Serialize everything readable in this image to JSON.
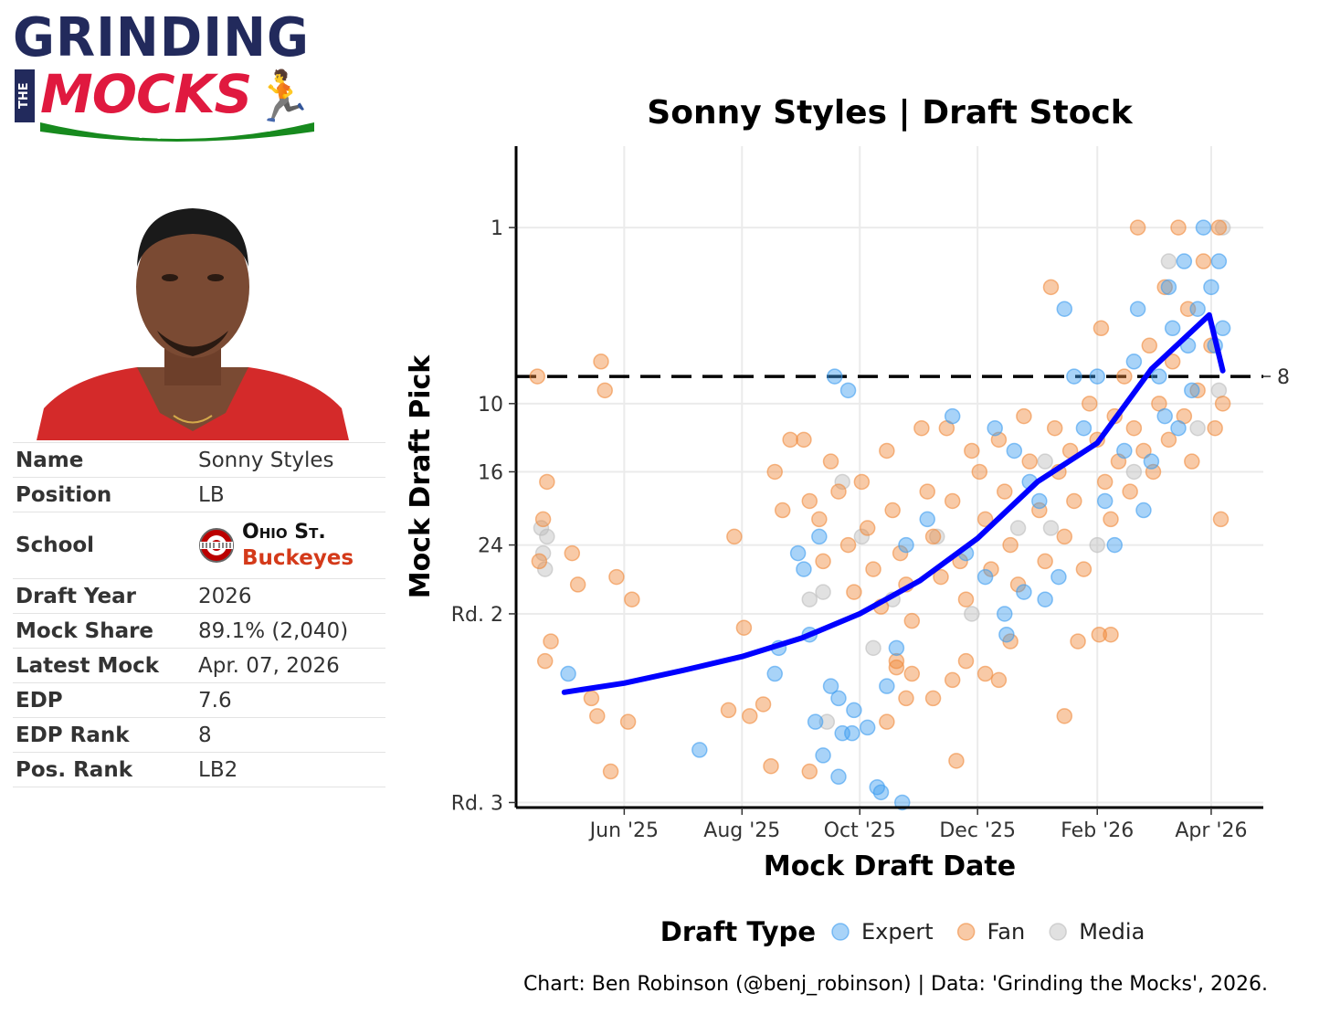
{
  "logo": {
    "line1": "GRINDING",
    "the": "THE",
    "line2": "MOCKS",
    "colors": {
      "navy": "#222a5c",
      "red": "#e0193f",
      "green": "#178a1e"
    }
  },
  "player_photo": {
    "icon": "player-headshot"
  },
  "info": {
    "rows": [
      {
        "label": "Name",
        "value": "Sonny Styles"
      },
      {
        "label": "Position",
        "value": "LB"
      },
      {
        "label": "School",
        "school_name": "Ohio St.",
        "school_nickname": "Buckeyes",
        "school_icon": "ohio-state-logo"
      },
      {
        "label": "Draft Year",
        "value": "2026"
      },
      {
        "label": "Mock Share",
        "value": "89.1% (2,040)"
      },
      {
        "label": "Latest Mock",
        "value": "Apr. 07, 2026"
      },
      {
        "label": "EDP",
        "value": "7.6"
      },
      {
        "label": "EDP Rank",
        "value": "8"
      },
      {
        "label": "Pos. Rank",
        "value": "LB2"
      }
    ]
  },
  "chart_data": {
    "type": "scatter",
    "title": "Sonny Styles | Draft Stock",
    "xlabel": "Mock Draft Date",
    "ylabel": "Mock Draft Pick",
    "xlim": [
      "2025-04-06",
      "2026-04-28"
    ],
    "x_ticks": [
      {
        "date": "2025-06-01",
        "label": "Jun '25"
      },
      {
        "date": "2025-08-01",
        "label": "Aug '25"
      },
      {
        "date": "2025-10-01",
        "label": "Oct '25"
      },
      {
        "date": "2025-12-01",
        "label": "Dec '25"
      },
      {
        "date": "2026-02-01",
        "label": "Feb '26"
      },
      {
        "date": "2026-04-01",
        "label": "Apr '26"
      }
    ],
    "y_scale": "sqrt",
    "y_reversed": true,
    "ylim": [
      0,
      66
    ],
    "y_ticks": [
      {
        "value": 1,
        "label": "1"
      },
      {
        "value": 10,
        "label": "10"
      },
      {
        "value": 16,
        "label": "16"
      },
      {
        "value": 24,
        "label": "24"
      },
      {
        "value": 33,
        "label": "Rd. 2"
      },
      {
        "value": 65,
        "label": "Rd. 3"
      }
    ],
    "reference_line": {
      "value": 8,
      "label": "8",
      "style": "dashed"
    },
    "grid": true,
    "legend": {
      "title": "Draft Type",
      "position": "bottom",
      "entries": [
        {
          "name": "Expert",
          "color": "#3d9df0"
        },
        {
          "name": "Fan",
          "color": "#f08a3c"
        },
        {
          "name": "Media",
          "color": "#bdbdbd"
        }
      ]
    },
    "trend_color": "#0000ff",
    "trend": [
      [
        "2025-05-01",
        45
      ],
      [
        "2025-06-01",
        43.5
      ],
      [
        "2025-07-01",
        41.5
      ],
      [
        "2025-08-01",
        39.3
      ],
      [
        "2025-09-01",
        36.5
      ],
      [
        "2025-10-01",
        33
      ],
      [
        "2025-11-01",
        28.5
      ],
      [
        "2025-12-01",
        23.2
      ],
      [
        "2026-01-01",
        17
      ],
      [
        "2026-02-01",
        13.3
      ],
      [
        "2026-03-01",
        7.5
      ],
      [
        "2026-03-31",
        4.3
      ],
      [
        "2026-04-07",
        7.6
      ]
    ],
    "series": [
      {
        "name": "Expert",
        "points": [
          [
            "2025-05-03",
            42
          ],
          [
            "2025-07-10",
            55
          ],
          [
            "2025-08-18",
            42
          ],
          [
            "2025-08-20",
            38
          ],
          [
            "2025-09-05",
            36
          ],
          [
            "2025-09-18",
            8
          ],
          [
            "2025-09-25",
            9
          ],
          [
            "2025-09-02",
            27
          ],
          [
            "2025-09-10",
            23
          ],
          [
            "2025-08-30",
            25
          ],
          [
            "2025-09-16",
            44
          ],
          [
            "2025-09-20",
            46
          ],
          [
            "2025-09-12",
            56
          ],
          [
            "2025-09-20",
            60
          ],
          [
            "2025-10-10",
            62
          ],
          [
            "2025-10-12",
            63
          ],
          [
            "2025-10-23",
            65
          ],
          [
            "2025-09-08",
            50
          ],
          [
            "2025-09-22",
            52
          ],
          [
            "2025-10-05",
            51
          ],
          [
            "2025-09-27",
            52
          ],
          [
            "2025-10-15",
            44
          ],
          [
            "2025-10-20",
            38
          ],
          [
            "2025-11-05",
            21
          ],
          [
            "2025-11-18",
            11
          ],
          [
            "2025-12-05",
            28
          ],
          [
            "2025-12-15",
            33
          ],
          [
            "2025-12-16",
            36
          ],
          [
            "2025-12-25",
            30
          ],
          [
            "2026-01-05",
            31
          ],
          [
            "2026-01-12",
            28
          ],
          [
            "2026-01-15",
            4
          ],
          [
            "2026-01-20",
            8
          ],
          [
            "2026-01-25",
            12
          ],
          [
            "2026-02-01",
            8
          ],
          [
            "2026-02-05",
            19
          ],
          [
            "2026-02-10",
            24
          ],
          [
            "2026-02-15",
            14
          ],
          [
            "2026-02-20",
            7
          ],
          [
            "2026-02-22",
            4
          ],
          [
            "2026-02-25",
            20
          ],
          [
            "2026-03-01",
            15
          ],
          [
            "2026-03-05",
            8
          ],
          [
            "2026-03-08",
            11
          ],
          [
            "2026-03-10",
            3
          ],
          [
            "2026-03-12",
            5
          ],
          [
            "2026-03-15",
            12
          ],
          [
            "2026-03-18",
            2
          ],
          [
            "2026-03-20",
            6
          ],
          [
            "2026-03-22",
            9
          ],
          [
            "2026-03-25",
            4
          ],
          [
            "2026-03-28",
            1
          ],
          [
            "2026-04-01",
            3
          ],
          [
            "2026-04-03",
            6
          ],
          [
            "2026-04-05",
            2
          ],
          [
            "2026-04-07",
            5
          ],
          [
            "2025-12-10",
            12
          ],
          [
            "2025-12-20",
            14
          ],
          [
            "2026-01-02",
            19
          ],
          [
            "2025-11-25",
            25
          ],
          [
            "2025-09-28",
            48
          ],
          [
            "2025-10-25",
            24
          ],
          [
            "2025-12-28",
            17
          ]
        ]
      },
      {
        "name": "Fan",
        "points": [
          [
            "2025-04-17",
            8
          ],
          [
            "2025-04-22",
            17
          ],
          [
            "2025-04-20",
            21
          ],
          [
            "2025-04-18",
            26
          ],
          [
            "2025-04-24",
            37
          ],
          [
            "2025-04-21",
            40
          ],
          [
            "2025-05-05",
            25
          ],
          [
            "2025-05-08",
            29
          ],
          [
            "2025-05-15",
            46
          ],
          [
            "2025-05-18",
            49
          ],
          [
            "2025-05-20",
            7
          ],
          [
            "2025-05-22",
            9
          ],
          [
            "2025-05-25",
            59
          ],
          [
            "2025-05-28",
            28
          ],
          [
            "2025-06-05",
            31
          ],
          [
            "2025-06-03",
            50
          ],
          [
            "2025-07-28",
            23
          ],
          [
            "2025-08-02",
            35
          ],
          [
            "2025-07-25",
            48
          ],
          [
            "2025-08-05",
            49
          ],
          [
            "2025-08-12",
            47
          ],
          [
            "2025-08-18",
            16
          ],
          [
            "2025-08-22",
            20
          ],
          [
            "2025-08-26",
            13
          ],
          [
            "2025-09-02",
            13
          ],
          [
            "2025-09-05",
            19
          ],
          [
            "2025-09-10",
            21
          ],
          [
            "2025-09-12",
            26
          ],
          [
            "2025-09-16",
            15
          ],
          [
            "2025-09-20",
            18
          ],
          [
            "2025-09-25",
            24
          ],
          [
            "2025-09-28",
            30
          ],
          [
            "2025-10-02",
            17
          ],
          [
            "2025-10-05",
            22
          ],
          [
            "2025-10-08",
            27
          ],
          [
            "2025-10-12",
            32
          ],
          [
            "2025-10-15",
            14
          ],
          [
            "2025-10-18",
            20
          ],
          [
            "2025-10-22",
            25
          ],
          [
            "2025-10-25",
            29
          ],
          [
            "2025-10-28",
            34
          ],
          [
            "2025-11-02",
            12
          ],
          [
            "2025-11-05",
            18
          ],
          [
            "2025-11-08",
            23
          ],
          [
            "2025-11-12",
            28
          ],
          [
            "2025-11-15",
            12
          ],
          [
            "2025-11-18",
            19
          ],
          [
            "2025-11-22",
            26
          ],
          [
            "2025-11-25",
            31
          ],
          [
            "2025-11-28",
            14
          ],
          [
            "2025-12-02",
            16
          ],
          [
            "2025-12-05",
            21
          ],
          [
            "2025-12-08",
            27
          ],
          [
            "2025-12-12",
            13
          ],
          [
            "2025-12-15",
            18
          ],
          [
            "2025-12-18",
            24
          ],
          [
            "2025-12-22",
            29
          ],
          [
            "2025-12-25",
            11
          ],
          [
            "2025-12-28",
            15
          ],
          [
            "2026-01-02",
            20
          ],
          [
            "2026-01-05",
            26
          ],
          [
            "2026-01-08",
            3
          ],
          [
            "2026-01-10",
            12
          ],
          [
            "2026-01-12",
            16
          ],
          [
            "2026-01-15",
            23
          ],
          [
            "2026-01-18",
            14
          ],
          [
            "2026-01-20",
            19
          ],
          [
            "2026-01-25",
            27
          ],
          [
            "2026-01-28",
            10
          ],
          [
            "2026-02-01",
            13
          ],
          [
            "2026-02-03",
            5
          ],
          [
            "2026-02-05",
            17
          ],
          [
            "2026-02-08",
            21
          ],
          [
            "2026-02-10",
            11
          ],
          [
            "2026-02-12",
            15
          ],
          [
            "2026-02-15",
            8
          ],
          [
            "2026-02-18",
            18
          ],
          [
            "2026-02-20",
            12
          ],
          [
            "2026-02-22",
            1
          ],
          [
            "2026-02-25",
            14
          ],
          [
            "2026-02-28",
            6
          ],
          [
            "2026-03-02",
            16
          ],
          [
            "2026-03-05",
            10
          ],
          [
            "2026-03-08",
            3
          ],
          [
            "2026-03-10",
            13
          ],
          [
            "2026-03-12",
            7
          ],
          [
            "2026-03-15",
            1
          ],
          [
            "2026-03-18",
            11
          ],
          [
            "2026-03-20",
            4
          ],
          [
            "2026-03-22",
            15
          ],
          [
            "2026-03-25",
            9
          ],
          [
            "2026-03-28",
            2
          ],
          [
            "2026-04-01",
            6
          ],
          [
            "2026-04-03",
            12
          ],
          [
            "2026-04-05",
            1
          ],
          [
            "2026-04-06",
            21
          ],
          [
            "2026-04-07",
            10
          ],
          [
            "2025-10-20",
            41
          ],
          [
            "2025-10-25",
            46
          ],
          [
            "2025-10-15",
            50
          ],
          [
            "2025-11-08",
            46
          ],
          [
            "2025-11-18",
            43
          ],
          [
            "2025-11-25",
            40
          ],
          [
            "2025-12-05",
            42
          ],
          [
            "2025-12-12",
            43
          ],
          [
            "2025-12-18",
            37
          ],
          [
            "2026-01-15",
            49
          ],
          [
            "2025-11-20",
            57
          ],
          [
            "2025-08-16",
            58
          ],
          [
            "2025-09-05",
            59
          ],
          [
            "2025-10-20",
            40
          ],
          [
            "2025-10-28",
            42
          ],
          [
            "2026-01-22",
            37
          ],
          [
            "2026-02-02",
            36
          ],
          [
            "2026-02-08",
            36
          ]
        ]
      },
      {
        "name": "Media",
        "points": [
          [
            "2025-04-19",
            22
          ],
          [
            "2025-04-20",
            25
          ],
          [
            "2025-04-21",
            27
          ],
          [
            "2025-04-22",
            23
          ],
          [
            "2025-09-12",
            30
          ],
          [
            "2025-09-05",
            31
          ],
          [
            "2025-09-14",
            50
          ],
          [
            "2025-09-22",
            17
          ],
          [
            "2025-10-02",
            23
          ],
          [
            "2025-10-08",
            38
          ],
          [
            "2025-10-18",
            31
          ],
          [
            "2025-11-10",
            23
          ],
          [
            "2025-11-28",
            33
          ],
          [
            "2026-01-05",
            15
          ],
          [
            "2026-01-08",
            22
          ],
          [
            "2026-02-20",
            16
          ],
          [
            "2026-03-10",
            2
          ],
          [
            "2026-03-25",
            12
          ],
          [
            "2026-04-05",
            9
          ],
          [
            "2026-04-07",
            1
          ],
          [
            "2026-02-01",
            24
          ],
          [
            "2025-12-22",
            22
          ]
        ]
      }
    ]
  },
  "caption": "Chart: Ben Robinson (@benj_robinson) | Data: 'Grinding the Mocks', 2026."
}
